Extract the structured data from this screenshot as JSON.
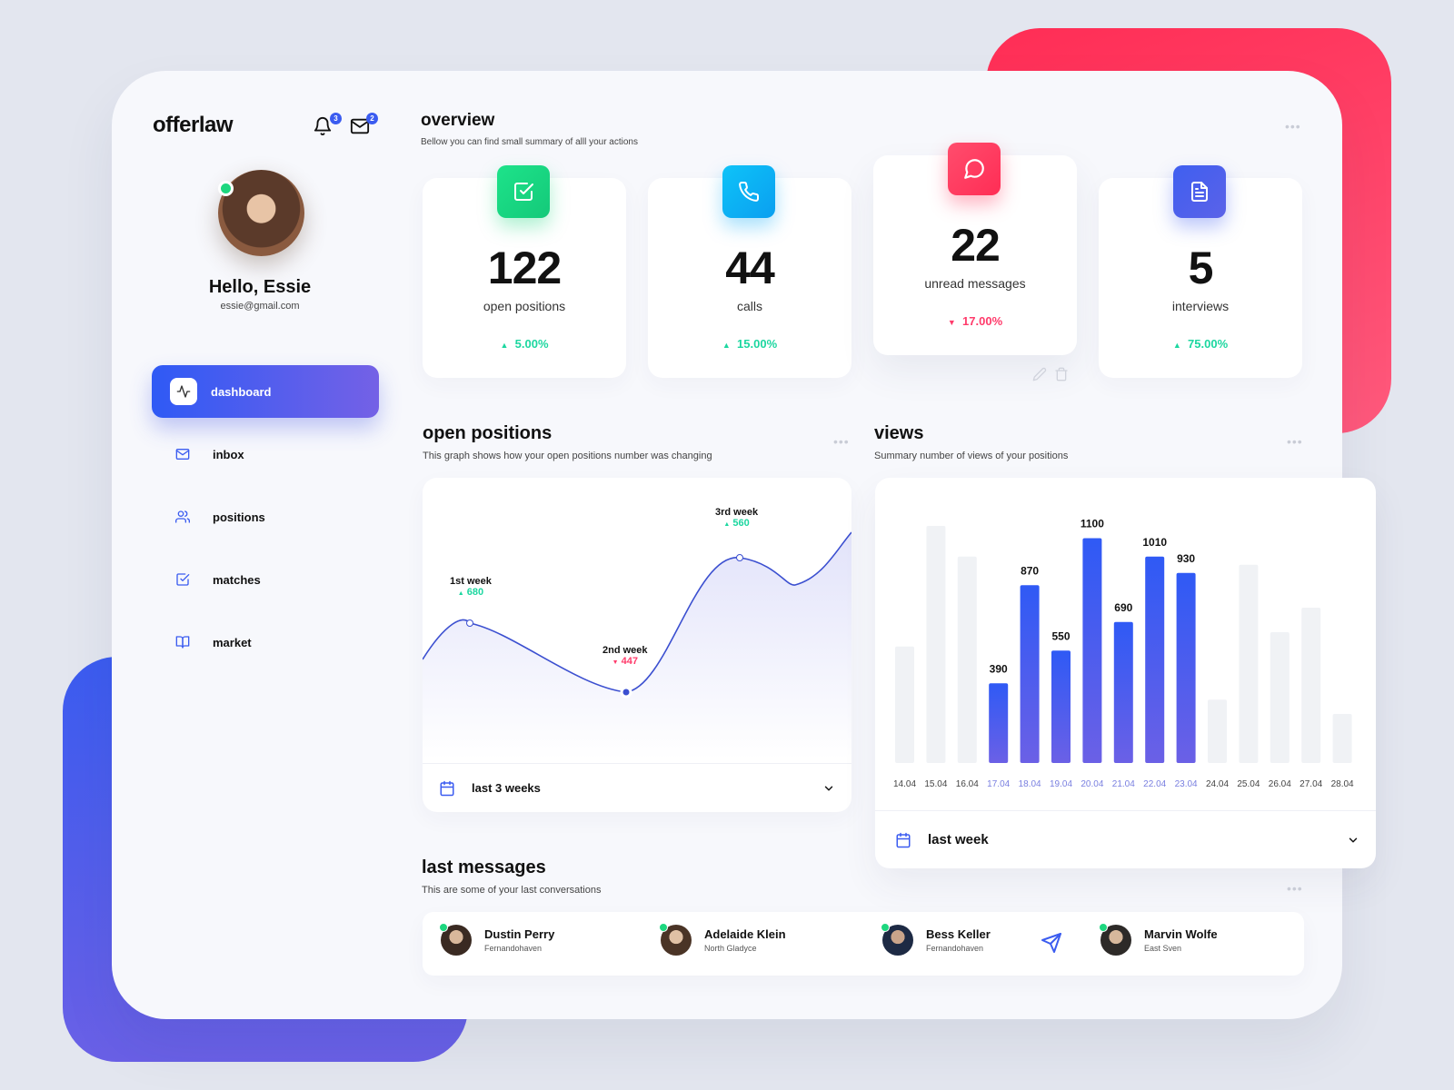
{
  "app": {
    "logo": "offerlaw",
    "notifications_count": "3",
    "mail_count": "2"
  },
  "profile": {
    "greeting": "Hello, Essie",
    "email": "essie@gmail.com"
  },
  "nav": [
    {
      "label": "dashboard",
      "icon": "activity-icon",
      "active": true
    },
    {
      "label": "inbox",
      "icon": "mail-icon"
    },
    {
      "label": "positions",
      "icon": "users-icon"
    },
    {
      "label": "matches",
      "icon": "check-square-icon"
    },
    {
      "label": "market",
      "icon": "book-icon"
    }
  ],
  "overview": {
    "title": "overview",
    "subtitle": "Bellow you can find small summary of alll your actions",
    "stats": [
      {
        "value": "122",
        "label": "open positions",
        "change": "5.00%",
        "dir": "up",
        "color": "#1dd77f",
        "icon": "check-square-icon"
      },
      {
        "value": "44",
        "label": "calls",
        "change": "15.00%",
        "dir": "up",
        "color": "#0ab4f5",
        "icon": "phone-icon"
      },
      {
        "value": "22",
        "label": "unread messages",
        "change": "17.00%",
        "dir": "down",
        "color": "#ff3b5f",
        "icon": "message-icon"
      },
      {
        "value": "5",
        "label": "interviews",
        "change": "75.00%",
        "dir": "up",
        "color": "#3f5ff0",
        "icon": "file-icon"
      }
    ]
  },
  "open_positions": {
    "title": "open positions",
    "subtitle": "This graph shows how your open positions number was changing",
    "range_label": "last 3 weeks"
  },
  "views": {
    "title": "views",
    "subtitle": "Summary number of views of your positions",
    "range_label": "last week"
  },
  "chart_data": [
    {
      "type": "line",
      "x": [
        "1st week",
        "2nd week",
        "3rd week"
      ],
      "values": [
        680,
        447,
        560
      ],
      "annotations": [
        {
          "label": "1st week",
          "value": "680",
          "dir": "up"
        },
        {
          "label": "2nd week",
          "value": "447",
          "dir": "down"
        },
        {
          "label": "3rd week",
          "value": "560",
          "dir": "up"
        }
      ]
    },
    {
      "type": "bar",
      "categories": [
        "14.04",
        "15.04",
        "16.04",
        "17.04",
        "18.04",
        "19.04",
        "20.04",
        "21.04",
        "22.04",
        "23.04",
        "24.04",
        "25.04",
        "26.04",
        "27.04",
        "28.04"
      ],
      "values": [
        570,
        1160,
        1010,
        390,
        870,
        550,
        1100,
        690,
        1010,
        930,
        310,
        970,
        640,
        760,
        240
      ],
      "highlighted": [
        false,
        false,
        false,
        true,
        true,
        true,
        true,
        true,
        true,
        true,
        false,
        false,
        false,
        false,
        false
      ],
      "labels": [
        "",
        "",
        "",
        "390",
        "870",
        "550",
        "1100",
        "690",
        "1010",
        "930",
        "",
        "",
        "",
        "",
        ""
      ]
    }
  ],
  "messages": {
    "title": "last messages",
    "subtitle": "This are some of your last conversations",
    "contacts": [
      {
        "name": "Dustin Perry",
        "location": "Fernandohaven"
      },
      {
        "name": "Adelaide Klein",
        "location": "North Gladyce"
      },
      {
        "name": "Bess Keller",
        "location": "Fernandohaven"
      },
      {
        "name": "Marvin Wolfe",
        "location": "East Sven"
      }
    ]
  }
}
